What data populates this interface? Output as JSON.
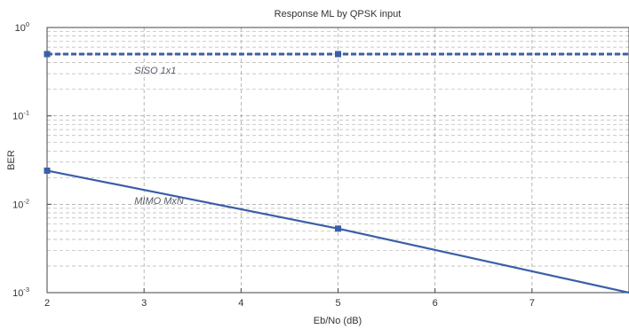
{
  "chart_data": {
    "type": "line",
    "title": "Response ML by QPSK input",
    "xlabel": "Eb/No (dB)",
    "ylabel": "BER",
    "xlim": [
      2,
      8
    ],
    "ylim": [
      0.001,
      1
    ],
    "yscale": "log",
    "grid": true,
    "x_ticks": [
      "2",
      "3",
      "4",
      "5",
      "6",
      "7"
    ],
    "y_ticks": [
      {
        "base": "10",
        "exp": "0",
        "value": 1
      },
      {
        "base": "10",
        "exp": "-1",
        "value": 0.1
      },
      {
        "base": "10",
        "exp": "-2",
        "value": 0.01
      },
      {
        "base": "10",
        "exp": "-3",
        "value": 0.001
      }
    ],
    "series": [
      {
        "x": [
          2,
          5,
          8
        ],
        "y": [
          0.5,
          0.5,
          0.5
        ],
        "style": "dashed",
        "color": "#3a5fa8",
        "marker": "square"
      },
      {
        "x": [
          2,
          5,
          8
        ],
        "y": [
          0.024,
          0.0053,
          0.001
        ],
        "style": "solid",
        "color": "#3a5fa8",
        "marker": "square"
      }
    ],
    "annotations": [
      {
        "text": "SISO 1x1",
        "x": 2.9,
        "y": 0.33
      },
      {
        "text": "MIMO MxN",
        "x": 2.9,
        "y": 0.011
      }
    ]
  }
}
